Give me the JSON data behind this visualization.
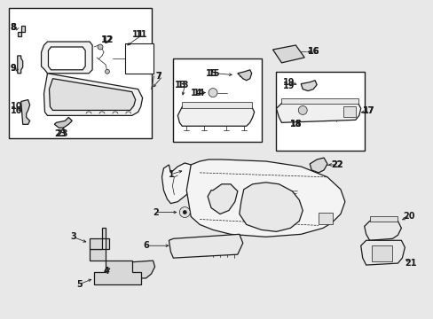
{
  "bg_color": "#e8e8e8",
  "white": "#ffffff",
  "lc": "#1a1a1a",
  "lw_main": 0.9,
  "lw_thin": 0.5,
  "fontsize_label": 7,
  "fig_w": 4.89,
  "fig_h": 3.6,
  "dpi": 100
}
